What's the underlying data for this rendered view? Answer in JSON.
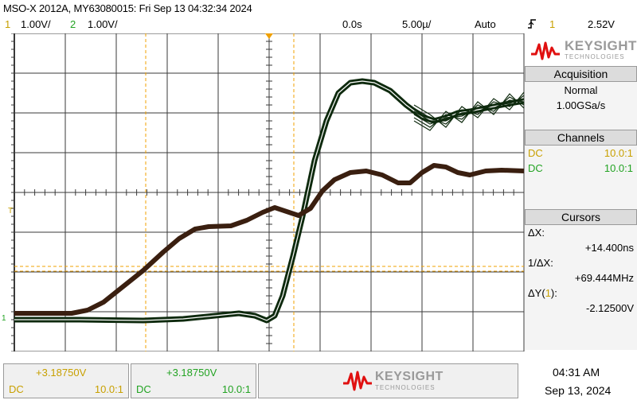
{
  "header": {
    "title": "MSO-X 2012A, MY63080015: Fri Sep 13 04:32:34 2024",
    "ch1_num": "1",
    "ch1_scale": "1.00V/",
    "ch2_num": "2",
    "ch2_scale": "1.00V/",
    "time_delay": "0.0s",
    "time_scale": "5.00µ/",
    "trigger_mode": "Auto",
    "trigger_icon": "rising-edge-icon",
    "trigger_channel": "1",
    "trigger_level": "2.52V"
  },
  "colors": {
    "ch1": "#c8a000",
    "ch2": "#22a322",
    "trace1": "#3a1f10",
    "trace2": "#0e2a0e",
    "logo_red": "#e01010"
  },
  "side": {
    "brand": "KEYSIGHT",
    "brand_sub": "TECHNOLOGIES",
    "acquisition": {
      "header": "Acquisition",
      "mode": "Normal",
      "rate": "1.00GSa/s"
    },
    "channels": {
      "header": "Channels",
      "ch1_coupling": "DC",
      "ch1_probe": "10.0:1",
      "ch2_coupling": "DC",
      "ch2_probe": "10.0:1"
    },
    "cursors": {
      "header": "Cursors",
      "dx_label": "ΔX:",
      "dx_value": "+14.400ns",
      "inv_label": "1/ΔX:",
      "inv_value": "+69.444MHz",
      "dy_label_pre": "ΔY(",
      "dy_label_ch": "1",
      "dy_label_post": "):",
      "dy_value": "-2.12500V"
    }
  },
  "bottom": {
    "ch1_offset": "+3.18750V",
    "ch1_coupling": "DC",
    "ch1_probe": "10.0:1",
    "ch2_offset": "+3.18750V",
    "ch2_coupling": "DC",
    "ch2_probe": "10.0:1",
    "brand": "KEYSIGHT",
    "brand_sub": "TECHNOLOGIES",
    "time": "04:31 AM",
    "date": "Sep 13, 2024"
  },
  "markers": {
    "trigger_level_label": "T",
    "ground_label": "1"
  }
}
